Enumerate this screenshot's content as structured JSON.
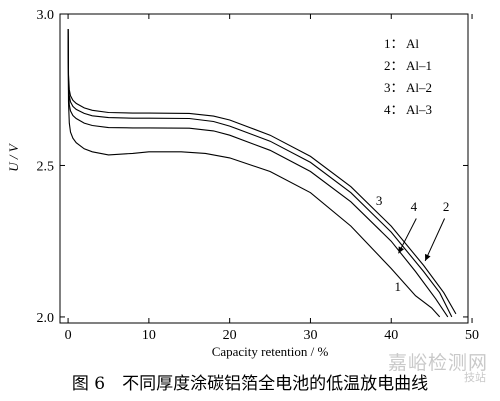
{
  "chart_data": {
    "type": "line",
    "title": "",
    "xlabel": "Capacity retention / %",
    "ylabel": "U / V",
    "xlim": [
      -1,
      49.5
    ],
    "ylim": [
      1.98,
      3.0
    ],
    "xticks": [
      0,
      10,
      20,
      30,
      40,
      50
    ],
    "yticks": [
      2.0,
      2.5,
      3.0
    ],
    "ytick_labels": [
      "2.0",
      "2.5",
      "3.0"
    ],
    "grid": false,
    "legend_position": "top-right",
    "legend": [
      {
        "num": "1：",
        "label": "Al"
      },
      {
        "num": "2：",
        "label": "Al–1"
      },
      {
        "num": "3：",
        "label": "Al–2"
      },
      {
        "num": "4：",
        "label": "Al–3"
      }
    ],
    "series": [
      {
        "name": "Al",
        "x": [
          0,
          0.05,
          0.15,
          0.3,
          0.6,
          1,
          2,
          3,
          5,
          8,
          10,
          14,
          17,
          20,
          25,
          30,
          35,
          40,
          43,
          45,
          46
        ],
        "y": [
          2.95,
          2.71,
          2.64,
          2.61,
          2.59,
          2.575,
          2.555,
          2.545,
          2.535,
          2.54,
          2.545,
          2.545,
          2.54,
          2.525,
          2.48,
          2.41,
          2.3,
          2.16,
          2.07,
          2.03,
          2.0
        ]
      },
      {
        "name": "Al–2",
        "x": [
          0,
          0.05,
          0.15,
          0.3,
          0.6,
          1,
          2,
          3,
          5,
          8,
          10,
          15,
          18,
          20,
          25,
          30,
          35,
          40,
          44,
          46,
          47.5
        ],
        "y": [
          2.95,
          2.78,
          2.73,
          2.71,
          2.695,
          2.685,
          2.672,
          2.664,
          2.658,
          2.656,
          2.656,
          2.655,
          2.645,
          2.63,
          2.58,
          2.51,
          2.41,
          2.28,
          2.15,
          2.08,
          2.0
        ]
      },
      {
        "name": "Al–3",
        "x": [
          0,
          0.05,
          0.15,
          0.3,
          0.6,
          1,
          2,
          3,
          5,
          8,
          10,
          15,
          18,
          20,
          25,
          30,
          35,
          40,
          44,
          46.5,
          48
        ],
        "y": [
          2.95,
          2.8,
          2.75,
          2.73,
          2.715,
          2.705,
          2.69,
          2.682,
          2.675,
          2.673,
          2.673,
          2.672,
          2.663,
          2.65,
          2.6,
          2.53,
          2.43,
          2.3,
          2.17,
          2.08,
          2.01
        ]
      },
      {
        "name": "Al–1",
        "x": [
          0,
          0.05,
          0.15,
          0.3,
          0.6,
          1,
          2,
          3,
          5,
          8,
          10,
          15,
          18,
          20,
          25,
          30,
          35,
          40,
          43,
          45.5,
          47
        ],
        "y": [
          2.95,
          2.75,
          2.7,
          2.68,
          2.665,
          2.655,
          2.64,
          2.632,
          2.625,
          2.624,
          2.624,
          2.623,
          2.614,
          2.6,
          2.55,
          2.48,
          2.38,
          2.25,
          2.15,
          2.06,
          2.0
        ]
      }
    ],
    "annotations": [
      {
        "text": "1",
        "x": 40.8,
        "y": 2.085
      },
      {
        "text": "2",
        "x": 46.8,
        "y": 2.35
      },
      {
        "text": "3",
        "x": 38.5,
        "y": 2.37
      },
      {
        "text": "4",
        "x": 42.8,
        "y": 2.35
      }
    ]
  },
  "caption": "图 6　不同厚度涂碳铝箔全电池的低温放电曲线",
  "watermark": "嘉峪检测网",
  "watermark_sub": "技站"
}
